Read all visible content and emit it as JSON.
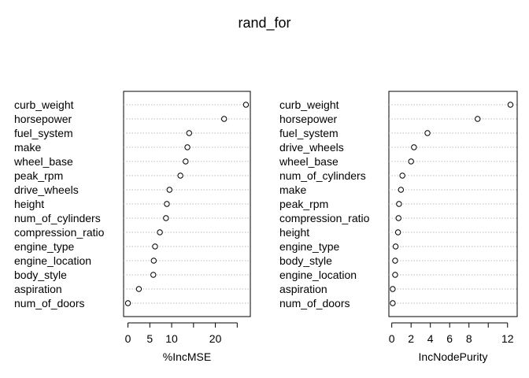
{
  "chart_data": [
    {
      "type": "dot",
      "title": "rand_for",
      "xlabel": "%IncMSE",
      "xlim": [
        -1,
        28
      ],
      "xticks": [
        0,
        5,
        10,
        20
      ],
      "xtick_minor": [
        15,
        25
      ],
      "grid": "horizontal-dotted",
      "categories": [
        "curb_weight",
        "horsepower",
        "fuel_system",
        "make",
        "wheel_base",
        "peak_rpm",
        "drive_wheels",
        "height",
        "num_of_cylinders",
        "compression_ratio",
        "engine_type",
        "engine_location",
        "body_style",
        "aspiration",
        "num_of_doors"
      ],
      "values": [
        27.0,
        22.0,
        14.0,
        13.6,
        13.2,
        12.0,
        9.5,
        8.9,
        8.7,
        7.3,
        6.2,
        5.9,
        5.8,
        2.5,
        0.0
      ]
    },
    {
      "type": "dot",
      "xlabel": "IncNodePurity",
      "xlim": [
        -0.3,
        13
      ],
      "xticks": [
        0,
        2,
        4,
        6,
        8,
        12
      ],
      "xtick_minor": [
        10
      ],
      "grid": "horizontal-dotted",
      "categories": [
        "curb_weight",
        "horsepower",
        "fuel_system",
        "drive_wheels",
        "wheel_base",
        "num_of_cylinders",
        "make",
        "peak_rpm",
        "compression_ratio",
        "height",
        "engine_type",
        "body_style",
        "engine_location",
        "aspiration",
        "num_of_doors"
      ],
      "values": [
        12.3,
        8.9,
        3.7,
        2.3,
        2.0,
        1.1,
        0.95,
        0.75,
        0.7,
        0.65,
        0.4,
        0.35,
        0.35,
        0.1,
        0.1
      ]
    }
  ]
}
